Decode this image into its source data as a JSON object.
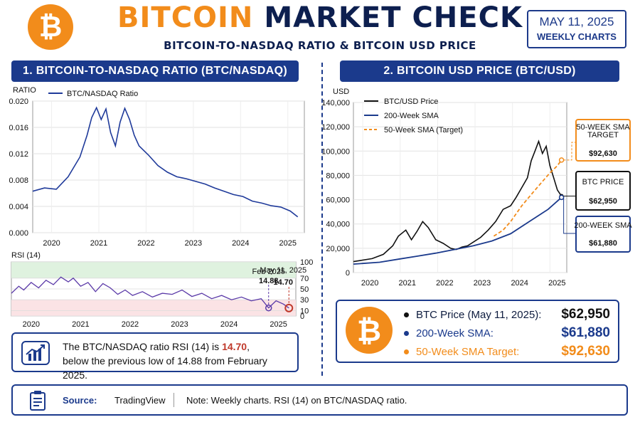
{
  "header": {
    "title_part1": "BITCOIN",
    "title_part2": "MARKET CHECK",
    "subtitle": "BITCOIN-TO-NASDAQ RATIO & BITCOIN USD PRICE",
    "date": "MAY 11, 2025",
    "frequency": "WEEKLY CHARTS",
    "logo_icon": "bitcoin-logo-icon"
  },
  "colors": {
    "orange": "#f28c1b",
    "navy": "#1b3a8c",
    "ratio_line": "#1f3a9a",
    "rsi_line": "#5b3aa8",
    "red": "#c0392b",
    "black": "#111111"
  },
  "left_panel": {
    "header": "1. BITCOIN-TO-NASDAQ RATIO (BTC/NASDAQ)",
    "rsi_label": "RSI (14)",
    "rsi_annotation_feb": {
      "date": "Feb 2025",
      "value": "14.88"
    },
    "rsi_annotation_may": {
      "date": "May 11, 2025",
      "value": "14.70"
    },
    "note_text_prefix": "The BTC/NASDAQ ratio RSI (14) is ",
    "note_value": "14.70",
    "note_text_suffix": ",",
    "note_line2": "below the previous low of 14.88 from February 2025.",
    "note_icon": "chart-growth-icon"
  },
  "right_panel": {
    "header": "2. BITCOIN USD PRICE (BTC/USD)",
    "callout_sma50_title": "50-WEEK SMA TARGET",
    "callout_sma50_value": "$92,630",
    "callout_price_title": "BTC PRICE",
    "callout_price_value": "$62,950",
    "callout_sma200_title": "200-WEEK SMA",
    "callout_sma200_value": "$61,880"
  },
  "summary": {
    "logo_icon": "bitcoin-logo-icon",
    "rows": [
      {
        "label": "BTC Price (May 11, 2025):",
        "value": "$62,950",
        "color": "#111111"
      },
      {
        "label": "200-Week SMA:",
        "value": "$61,880",
        "color": "#1b3a8c"
      },
      {
        "label": "50-Week SMA Target:",
        "value": "$92,630",
        "color": "#f28c1b"
      }
    ]
  },
  "footer": {
    "icon": "clipboard-icon",
    "source_label": "Source:",
    "source_value": "TradingView",
    "note": "Note: Weekly charts. RSI (14) on  BTC/NASDAQ ratio."
  },
  "chart_data": [
    {
      "type": "line",
      "ylabel": "RATIO",
      "ylim": [
        0,
        0.02
      ],
      "yticks": [
        "0.000",
        "0.004",
        "0.008",
        "0.012",
        "0.016",
        "0.020"
      ],
      "xticks": [
        "2020",
        "2021",
        "2022",
        "2023",
        "2024",
        "2025"
      ],
      "grid": true,
      "legend_position": "top-left",
      "series": [
        {
          "name": "BTC/NASDAQ Ratio",
          "x": [
            2019.75,
            2020.0,
            2020.25,
            2020.5,
            2020.75,
            2020.9,
            2021.0,
            2021.1,
            2021.2,
            2021.3,
            2021.4,
            2021.5,
            2021.6,
            2021.7,
            2021.8,
            2021.9,
            2022.0,
            2022.2,
            2022.4,
            2022.6,
            2022.8,
            2023.0,
            2023.2,
            2023.4,
            2023.6,
            2023.8,
            2024.0,
            2024.2,
            2024.4,
            2024.6,
            2024.8,
            2025.0,
            2025.2,
            2025.36
          ],
          "values": [
            0.0063,
            0.0068,
            0.0066,
            0.0085,
            0.0115,
            0.0148,
            0.0175,
            0.019,
            0.0172,
            0.0188,
            0.0152,
            0.0132,
            0.0168,
            0.0189,
            0.0172,
            0.0148,
            0.0132,
            0.0118,
            0.0102,
            0.0092,
            0.0085,
            0.0082,
            0.0078,
            0.0074,
            0.0068,
            0.0063,
            0.0058,
            0.0055,
            0.0048,
            0.0045,
            0.0041,
            0.0039,
            0.0033,
            0.0024
          ]
        }
      ]
    },
    {
      "type": "line",
      "title": "RSI (14)",
      "ylim": [
        0,
        100
      ],
      "yticks": [
        0,
        10,
        30,
        50,
        70,
        100
      ],
      "xticks": [
        "2020",
        "2021",
        "2022",
        "2023",
        "2024",
        "2025"
      ],
      "series": [
        {
          "name": "RSI (14)",
          "x": [
            2019.75,
            2019.9,
            2020.0,
            2020.15,
            2020.3,
            2020.45,
            2020.6,
            2020.75,
            2020.9,
            2021.0,
            2021.15,
            2021.3,
            2021.45,
            2021.6,
            2021.75,
            2021.9,
            2022.05,
            2022.2,
            2022.4,
            2022.6,
            2022.8,
            2023.0,
            2023.2,
            2023.4,
            2023.6,
            2023.8,
            2024.0,
            2024.2,
            2024.4,
            2024.6,
            2024.8,
            2024.95,
            2025.1,
            2025.25,
            2025.36
          ],
          "values": [
            42,
            55,
            48,
            62,
            52,
            66,
            58,
            72,
            63,
            70,
            55,
            62,
            45,
            60,
            52,
            40,
            48,
            38,
            45,
            35,
            42,
            40,
            48,
            36,
            42,
            32,
            38,
            30,
            35,
            28,
            32,
            14.88,
            28,
            22,
            14.7
          ]
        }
      ]
    },
    {
      "type": "line",
      "ylabel": "USD",
      "ylim": [
        0,
        140000
      ],
      "yticks": [
        "0",
        "20,000",
        "40,000",
        "60,000",
        "80,000",
        "100,000",
        "120,000",
        "140,000"
      ],
      "xticks": [
        "2020",
        "2021",
        "2022",
        "2023",
        "2024",
        "2025"
      ],
      "grid": true,
      "legend_position": "top-left",
      "series": [
        {
          "name": "BTC/USD Price",
          "x": [
            2019.8,
            2020.0,
            2020.3,
            2020.6,
            2020.85,
            2021.0,
            2021.2,
            2021.35,
            2021.5,
            2021.65,
            2021.8,
            2022.0,
            2022.2,
            2022.4,
            2022.55,
            2022.7,
            2022.85,
            2023.0,
            2023.2,
            2023.4,
            2023.6,
            2023.8,
            2024.0,
            2024.15,
            2024.3,
            2024.45,
            2024.55,
            2024.65,
            2024.75,
            2024.85,
            2024.95,
            2025.05,
            2025.15,
            2025.25,
            2025.36
          ],
          "values": [
            9000,
            10000,
            11500,
            15000,
            22000,
            30000,
            35000,
            27000,
            34000,
            42000,
            37000,
            27000,
            24000,
            20000,
            19000,
            21000,
            22000,
            25000,
            29000,
            35000,
            42000,
            52000,
            55000,
            62000,
            70000,
            78000,
            92000,
            100000,
            108000,
            98000,
            104000,
            88000,
            78000,
            68000,
            62950
          ]
        },
        {
          "name": "200-Week SMA",
          "x": [
            2019.8,
            2020.5,
            2021.0,
            2021.5,
            2022.0,
            2022.5,
            2023.0,
            2023.5,
            2024.0,
            2024.5,
            2025.0,
            2025.36
          ],
          "values": [
            7000,
            8500,
            11000,
            13500,
            16000,
            19000,
            22000,
            26000,
            32000,
            42000,
            52000,
            61880
          ]
        },
        {
          "name": "50-Week SMA (Target)",
          "x": [
            2023.55,
            2023.8,
            2024.0,
            2024.3,
            2024.6,
            2024.85,
            2025.05,
            2025.25,
            2025.36
          ],
          "values": [
            30000,
            35000,
            42000,
            55000,
            66000,
            75000,
            82000,
            88000,
            92630
          ]
        }
      ]
    }
  ]
}
